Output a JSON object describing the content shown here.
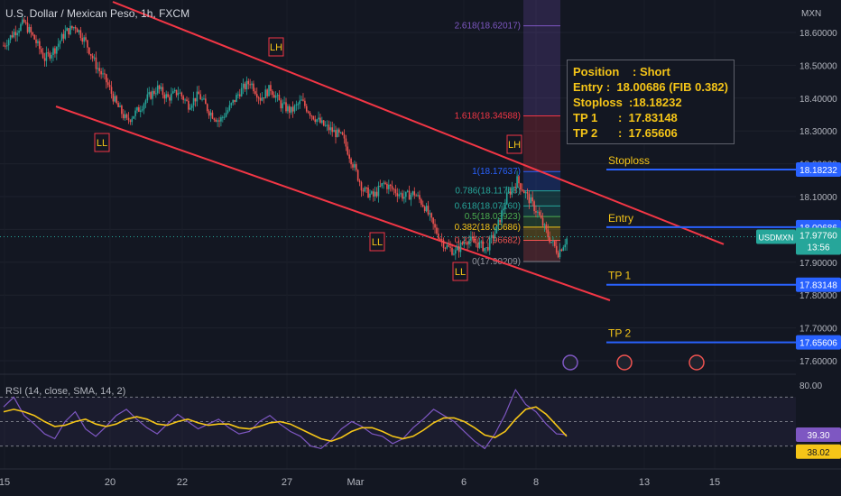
{
  "header": {
    "symbol_title": "U.S. Dollar / Mexican Peso, 1h, FXCM",
    "currency": "MXN",
    "rsi_title": "RSI (14, close, SMA, 14, 2)"
  },
  "trade_box": {
    "rows": [
      {
        "k": "Position",
        "v": ": Short"
      },
      {
        "k": "Entry",
        "v": ":  18.00686 (FIB 0.382)"
      },
      {
        "k": "Stoploss",
        "v": ":18.18232"
      },
      {
        "k": "TP 1",
        "v": ":  17.83148"
      },
      {
        "k": "TP 2",
        "v": ":  17.65606"
      }
    ]
  },
  "levels": [
    {
      "name": "Stoploss",
      "label": "Stoploss",
      "value": 18.18232,
      "badge": "18.18232"
    },
    {
      "name": "Entry",
      "label": "Entry",
      "value": 18.00686,
      "badge": "18.00686"
    },
    {
      "name": "TP 1",
      "label": "TP 1",
      "value": 17.83148,
      "badge": "17.83148"
    },
    {
      "name": "TP 2",
      "label": "TP 2",
      "value": 17.65606,
      "badge": "17.65606"
    }
  ],
  "price_badge": {
    "symbol": "USDMXN",
    "price": "17.97760",
    "countdown": "13:56",
    "value": 17.9776
  },
  "rsi_badges": {
    "rsi": "39.30",
    "sma": "38.02"
  },
  "colors": {
    "background": "#131722",
    "channel": "#f23645",
    "level_line": "#2962ff",
    "level_label": "#f5c518",
    "rsi_line": "#7e57c2",
    "rsi_sma": "#f5c518",
    "candle_up": "#26a69a",
    "candle_down": "#ef5350"
  },
  "chart_data": [
    {
      "type": "candlestick",
      "title": "U.S. Dollar / Mexican Peso, 1h, FXCM",
      "x_ticks": [
        "15",
        "20",
        "22",
        "27",
        "Mar",
        "6",
        "8",
        "13",
        "15"
      ],
      "y_ticks": [
        "18.60000",
        "18.50000",
        "18.40000",
        "18.30000",
        "18.20000",
        "18.10000",
        "18.00000",
        "17.90000",
        "17.80000",
        "17.70000",
        "17.60000"
      ],
      "ylim": [
        17.56,
        18.66
      ],
      "close_series_approx": [
        18.56,
        18.6,
        18.63,
        18.58,
        18.52,
        18.55,
        18.6,
        18.62,
        18.57,
        18.5,
        18.45,
        18.38,
        18.33,
        18.36,
        18.4,
        18.43,
        18.4,
        18.42,
        18.38,
        18.41,
        18.36,
        18.33,
        18.37,
        18.42,
        18.45,
        18.4,
        18.43,
        18.38,
        18.36,
        18.39,
        18.35,
        18.32,
        18.3,
        18.28,
        18.2,
        18.12,
        18.1,
        18.14,
        18.12,
        18.1,
        18.11,
        18.07,
        18.0,
        17.95,
        17.93,
        17.97,
        17.96,
        17.94,
        18.0,
        18.1,
        18.15,
        18.1,
        18.05,
        17.98,
        17.93,
        17.98
      ],
      "swing_labels": [
        {
          "text": "LL",
          "at": "18.33"
        },
        {
          "text": "LH",
          "at": "18.52"
        },
        {
          "text": "LL",
          "at": "17.95"
        },
        {
          "text": "LH",
          "at": "18.23"
        },
        {
          "text": "LL",
          "at": "17.86"
        }
      ],
      "fibonacci": [
        {
          "ratio": "2.618",
          "value": 18.62017,
          "label": "2.618(18.62017)"
        },
        {
          "ratio": "1.618",
          "value": 18.34588,
          "label": "1.618(18.34588)"
        },
        {
          "ratio": "1",
          "value": 18.17637,
          "label": "1(18.17637)"
        },
        {
          "ratio": "0.786",
          "value": 18.11768,
          "label": "0.786(18.11768)"
        },
        {
          "ratio": "0.618",
          "value": 18.0716,
          "label": "0.618(18.07160)"
        },
        {
          "ratio": "0.5",
          "value": 18.03923,
          "label": "0.5(18.03923)"
        },
        {
          "ratio": "0.382",
          "value": 18.00686,
          "label": "0.382(18.00686)"
        },
        {
          "ratio": "0.236",
          "value": 17.96682,
          "label": "0.236(17.96682)"
        },
        {
          "ratio": "0",
          "value": 17.90209,
          "label": "0(17.90209)"
        }
      ],
      "horizontal_levels": [
        {
          "name": "Stoploss",
          "value": 18.18232
        },
        {
          "name": "Entry",
          "value": 18.00686
        },
        {
          "name": "TP 1",
          "value": 17.83148
        },
        {
          "name": "TP 2",
          "value": 17.65606
        }
      ],
      "last_price": 17.9776,
      "channel": "descending, red"
    },
    {
      "type": "line",
      "title": "RSI (14, close, SMA, 14, 2)",
      "y_ticks": [
        "80.00"
      ],
      "ylim": [
        15,
        85
      ],
      "series": [
        {
          "name": "RSI",
          "values": [
            62,
            70,
            55,
            48,
            40,
            36,
            50,
            58,
            44,
            38,
            46,
            55,
            60,
            52,
            45,
            40,
            48,
            56,
            50,
            44,
            48,
            52,
            45,
            40,
            42,
            50,
            55,
            48,
            42,
            38,
            30,
            28,
            35,
            44,
            50,
            46,
            40,
            38,
            32,
            36,
            45,
            52,
            60,
            55,
            50,
            42,
            34,
            28,
            40,
            56,
            76,
            64,
            58,
            48,
            40,
            39.3
          ]
        },
        {
          "name": "SMA",
          "values": [
            58,
            60,
            58,
            55,
            50,
            46,
            47,
            50,
            52,
            48,
            46,
            48,
            52,
            54,
            52,
            48,
            47,
            50,
            52,
            49,
            47,
            48,
            48,
            45,
            44,
            46,
            49,
            50,
            48,
            44,
            40,
            36,
            34,
            37,
            42,
            45,
            45,
            42,
            38,
            36,
            38,
            43,
            49,
            53,
            53,
            50,
            45,
            39,
            37,
            42,
            52,
            60,
            62,
            56,
            47,
            38.02
          ]
        }
      ],
      "last_rsi": 39.3,
      "last_sma": 38.02
    }
  ]
}
